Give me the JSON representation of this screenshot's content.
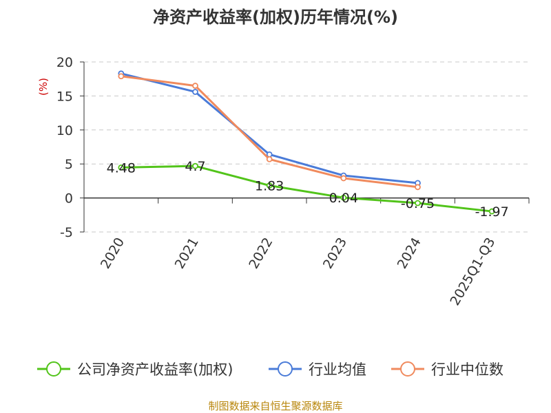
{
  "chart_data": {
    "type": "line",
    "title": "净资产收益率(加权)历年情况(%)",
    "ylabel": "(%)",
    "xlabel": "",
    "categories": [
      "2020",
      "2021",
      "2022",
      "2023",
      "2024",
      "2025Q1-Q3"
    ],
    "ylim": [
      -5,
      20
    ],
    "yticks": [
      -5,
      0,
      5,
      10,
      15,
      20
    ],
    "grid": true,
    "legend_position": "bottom",
    "series": [
      {
        "name": "公司净资产收益率(加权)",
        "color": "#52c41a",
        "values": [
          4.48,
          4.7,
          1.83,
          0.04,
          -0.75,
          -1.97
        ],
        "labels": [
          "4.48",
          "4.7",
          "1.83",
          "0.04",
          "-0.75",
          "-1.97"
        ]
      },
      {
        "name": "行业均值",
        "color": "#4a7bd8",
        "values": [
          18.3,
          15.6,
          6.4,
          3.3,
          2.2,
          null
        ]
      },
      {
        "name": "行业中位数",
        "color": "#f08a5d",
        "values": [
          17.9,
          16.5,
          5.7,
          2.9,
          1.6,
          null
        ]
      }
    ]
  },
  "footer": {
    "source": "制图数据来自恒生聚源数据库"
  }
}
